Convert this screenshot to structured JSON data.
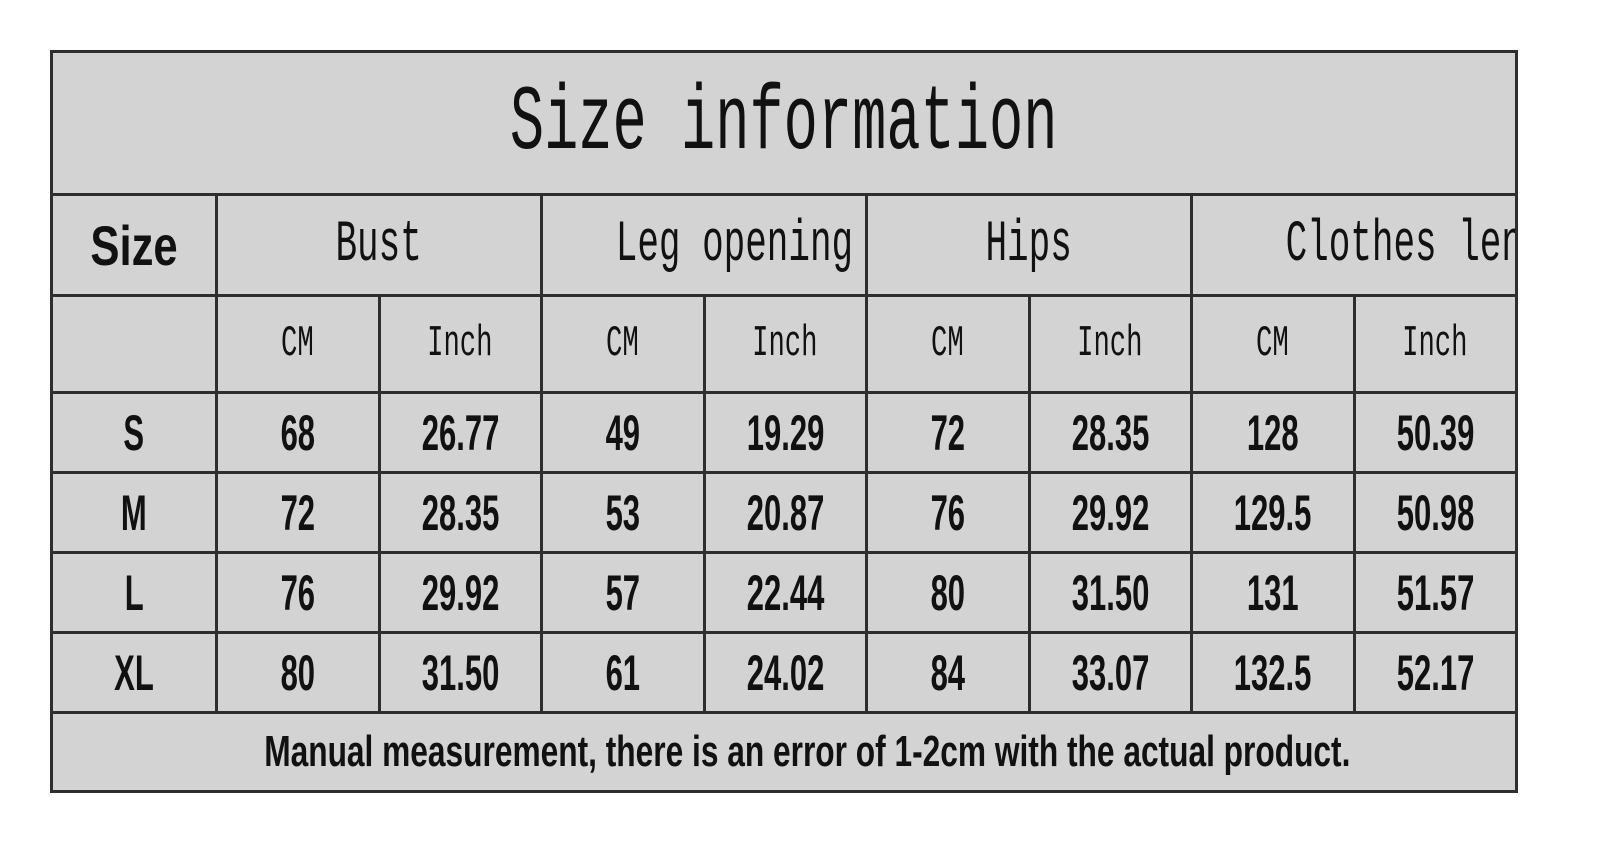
{
  "title": "Size information",
  "header": {
    "size": "Size",
    "groups": [
      "Bust",
      "Leg opening",
      "Hips",
      "Clothes length"
    ]
  },
  "subheader": [
    "CM",
    "Inch",
    "CM",
    "Inch",
    "CM",
    "Inch",
    "CM",
    "Inch"
  ],
  "rows": [
    [
      "S",
      "68",
      "26.77",
      "49",
      "19.29",
      "72",
      "28.35",
      "128",
      "50.39"
    ],
    [
      "M",
      "72",
      "28.35",
      "53",
      "20.87",
      "76",
      "29.92",
      "129.5",
      "50.98"
    ],
    [
      "L",
      "76",
      "29.92",
      "57",
      "22.44",
      "80",
      "31.50",
      "131",
      "51.57"
    ],
    [
      "XL",
      "80",
      "31.50",
      "61",
      "24.02",
      "84",
      "33.07",
      "132.5",
      "52.17"
    ]
  ],
  "note": "Manual measurement, there is an error of 1-2cm with the actual product."
}
